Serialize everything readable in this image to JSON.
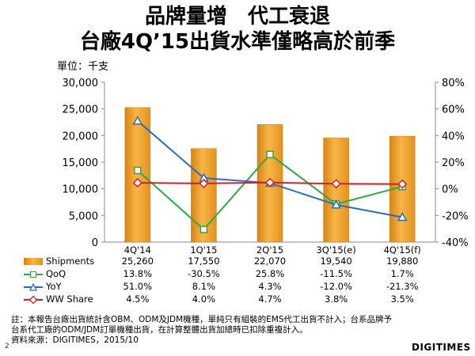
{
  "page": {
    "title_line1": "品牌量增　代工衰退",
    "title_line2": "台廠4Q’15出貨水準僅略高於前季",
    "unit": "單位：千支",
    "note_line1": "註：本報告台廠出貨統計含OBM、ODM及JDM機種，單純只有組裝的EMS代工出貨不計入；台系品牌予",
    "note_line2": "台系代工廠的ODM/JDM訂單機種出貨，在計算整體出貨加總時已扣除重複計入。",
    "source": "資料來源：DIGITIMES，2015/10",
    "page_number": "2",
    "logo": "DIGITIMES"
  },
  "chart_data": {
    "type": "bar",
    "categories": [
      "4Q'14",
      "1Q'15",
      "2Q'15",
      "3Q'15(e)",
      "4Q'15(f)"
    ],
    "bar_series": {
      "name": "Shipments",
      "values": [
        25260,
        17550,
        22070,
        19540,
        19880
      ],
      "labels": [
        "25,260",
        "17,550",
        "22,070",
        "19,540",
        "19,880"
      ],
      "color": "#F2A530"
    },
    "line_series": [
      {
        "name": "QoQ",
        "values": [
          13.8,
          -30.5,
          25.8,
          -11.5,
          1.7
        ],
        "labels": [
          "13.8%",
          "-30.5%",
          "25.8%",
          "-11.5%",
          "1.7%"
        ],
        "color": "#2DA844",
        "marker": "square"
      },
      {
        "name": "YoY",
        "values": [
          51.0,
          8.1,
          4.3,
          -12.0,
          -21.3
        ],
        "labels": [
          "51.0%",
          "8.1%",
          "4.3%",
          "-12.0%",
          "-21.3%"
        ],
        "color": "#2B6DC0",
        "marker": "triangle"
      },
      {
        "name": "WW Share",
        "values": [
          4.5,
          4.0,
          4.7,
          3.8,
          3.5
        ],
        "labels": [
          "4.5%",
          "4.0%",
          "4.7%",
          "3.8%",
          "3.5%"
        ],
        "color": "#D0202E",
        "marker": "diamond"
      }
    ],
    "y_left": {
      "min": 0,
      "max": 30000,
      "ticks": [
        0,
        5000,
        10000,
        15000,
        20000,
        25000,
        30000
      ],
      "tick_labels": [
        "0",
        "5,000",
        "10,000",
        "15,000",
        "20,000",
        "25,000",
        "30,000"
      ]
    },
    "y_right": {
      "min": -40,
      "max": 80,
      "ticks": [
        -40,
        -20,
        0,
        20,
        40,
        60,
        80
      ],
      "tick_labels": [
        "-40%",
        "-20%",
        "0%",
        "20%",
        "40%",
        "60%",
        "80%"
      ]
    },
    "grid": false,
    "legend": "data table below chart"
  }
}
